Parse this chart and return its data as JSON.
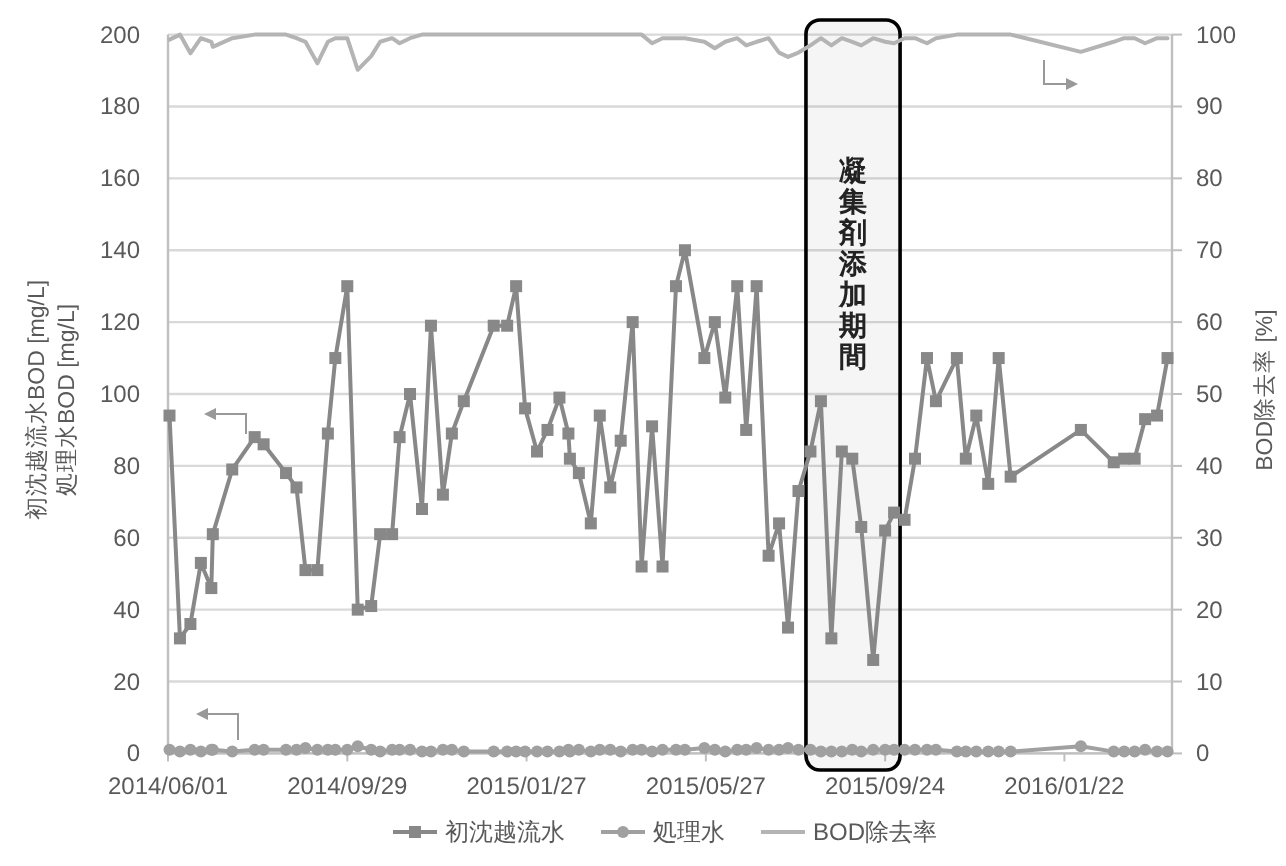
{
  "chart_data": {
    "type": "line",
    "x": [
      "2014-06-02",
      "2014-06-09",
      "2014-06-16",
      "2014-06-23",
      "2014-06-30",
      "2014-07-01",
      "2014-07-14",
      "2014-07-29",
      "2014-08-04",
      "2014-08-19",
      "2014-08-26",
      "2014-09-01",
      "2014-09-09",
      "2014-09-16",
      "2014-09-21",
      "2014-09-29",
      "2014-10-06",
      "2014-10-15",
      "2014-10-21",
      "2014-10-29",
      "2014-11-03",
      "2014-11-10",
      "2014-11-18",
      "2014-11-24",
      "2014-12-02",
      "2014-12-08",
      "2014-12-16",
      "2015-01-05",
      "2015-01-14",
      "2015-01-20",
      "2015-01-26",
      "2015-02-03",
      "2015-02-10",
      "2015-02-18",
      "2015-02-24",
      "2015-02-25",
      "2015-03-03",
      "2015-03-11",
      "2015-03-17",
      "2015-03-24",
      "2015-03-31",
      "2015-04-08",
      "2015-04-14",
      "2015-04-21",
      "2015-04-28",
      "2015-05-07",
      "2015-05-13",
      "2015-05-26",
      "2015-06-02",
      "2015-06-09",
      "2015-06-17",
      "2015-06-23",
      "2015-06-30",
      "2015-07-08",
      "2015-07-15",
      "2015-07-21",
      "2015-07-28",
      "2015-08-05",
      "2015-08-12",
      "2015-08-19",
      "2015-08-26",
      "2015-09-02",
      "2015-09-08",
      "2015-09-16",
      "2015-09-24",
      "2015-09-30",
      "2015-10-07",
      "2015-10-14",
      "2015-10-22",
      "2015-10-28",
      "2015-11-11",
      "2015-11-17",
      "2015-11-24",
      "2015-12-02",
      "2015-12-09",
      "2015-12-17",
      "2016-02-02",
      "2016-02-24",
      "2016-03-02",
      "2016-03-09",
      "2016-03-16",
      "2016-03-24",
      "2016-03-31"
    ],
    "xlim": [
      "2014-06-01",
      "2016-04-03"
    ],
    "xticks": [
      {
        "value": "2014-06-01",
        "label": "2014/06/01"
      },
      {
        "value": "2014-09-29",
        "label": "2014/09/29"
      },
      {
        "value": "2015-01-27",
        "label": "2015/01/27"
      },
      {
        "value": "2015-05-27",
        "label": "2015/05/27"
      },
      {
        "value": "2015-09-24",
        "label": "2015/09/24"
      },
      {
        "value": "2016-01-22",
        "label": "2016/01/22"
      }
    ],
    "ylim": [
      0,
      200
    ],
    "yticks": [
      0,
      20,
      40,
      60,
      80,
      100,
      120,
      140,
      160,
      180,
      200
    ],
    "y2lim": [
      0,
      100
    ],
    "y2ticks": [
      0,
      10,
      20,
      30,
      40,
      50,
      60,
      70,
      80,
      90,
      100
    ],
    "ylabel": "初沈越流水BOD [mg/L]\n処理水BOD [mg/L]",
    "y2label": "BOD除去率 [%]",
    "grid": "y",
    "legend": "bottom",
    "series": [
      {
        "name": "初沈越流水",
        "color": "#888888",
        "marker": "square",
        "values": [
          94,
          32,
          36,
          53,
          46,
          61,
          79,
          88,
          86,
          78,
          74,
          51,
          51,
          89,
          110,
          130,
          40,
          41,
          61,
          61,
          88,
          100,
          68,
          119,
          72,
          89,
          98,
          119,
          119,
          130,
          96,
          84,
          90,
          99,
          89,
          82,
          78,
          64,
          94,
          74,
          87,
          120,
          52,
          91,
          52,
          130,
          140,
          110,
          120,
          99,
          130,
          90,
          130,
          55,
          64,
          35,
          73,
          84,
          98,
          32,
          84,
          82,
          63,
          26,
          62,
          67,
          65,
          82,
          110,
          98,
          110,
          82,
          94,
          75,
          110,
          77,
          90,
          81,
          82,
          82,
          93,
          94,
          110
        ]
      },
      {
        "name": "処理水",
        "color": "#a0a0a0",
        "marker": "circle",
        "values": [
          1,
          0.5,
          1,
          0.5,
          1,
          1,
          0.5,
          1,
          1,
          1,
          1,
          1.5,
          1,
          1,
          1,
          1,
          2,
          1,
          0.5,
          1,
          1,
          1,
          0.5,
          0.5,
          1,
          1,
          0.5,
          0.5,
          0.5,
          0.5,
          0.5,
          0.5,
          0.5,
          0.5,
          1,
          0.5,
          1,
          0.5,
          1,
          1,
          0.5,
          1,
          1,
          0.5,
          1,
          1,
          1,
          1.5,
          1,
          0.5,
          1,
          1,
          1.5,
          1,
          1,
          1.5,
          1,
          1,
          0.5,
          0.5,
          0.5,
          1,
          0.5,
          1,
          1,
          1,
          1,
          1,
          1,
          1,
          0.5,
          0.5,
          0.5,
          0.5,
          0.5,
          0.5,
          2,
          0.5,
          0.5,
          0.5,
          1,
          0.5,
          0.5
        ]
      },
      {
        "name": "BOD除去率",
        "color": "#b4b4b4",
        "marker": "none",
        "axis": "y2",
        "values": [
          99.3,
          100,
          97.4,
          99.5,
          99,
          98.3,
          99.5,
          100,
          100,
          100,
          99.5,
          99,
          96,
          99,
          99.5,
          99.5,
          95.1,
          97,
          99,
          99.5,
          98.8,
          99.5,
          100,
          100,
          100,
          100,
          100,
          100,
          100,
          100,
          100,
          100,
          100,
          100,
          100,
          100,
          100,
          100,
          100,
          100,
          100,
          100,
          100,
          98.8,
          99.5,
          99.5,
          99.5,
          99,
          98.1,
          99,
          99.5,
          98.5,
          99,
          99.5,
          97.5,
          96.9,
          97.5,
          98.5,
          99.5,
          98.5,
          99.5,
          99,
          98.5,
          99.5,
          99,
          98.8,
          99.5,
          99.5,
          98.8,
          99.5,
          100,
          100,
          100,
          100,
          100,
          100,
          97.6,
          99,
          99.5,
          99.5,
          98.8,
          99.5,
          99.5
        ]
      }
    ],
    "bands": [
      {
        "axis": "x",
        "from": "2015-08-02",
        "to": "2015-10-04",
        "label": "凝集剤添加期間",
        "color": "#000000"
      }
    ]
  }
}
